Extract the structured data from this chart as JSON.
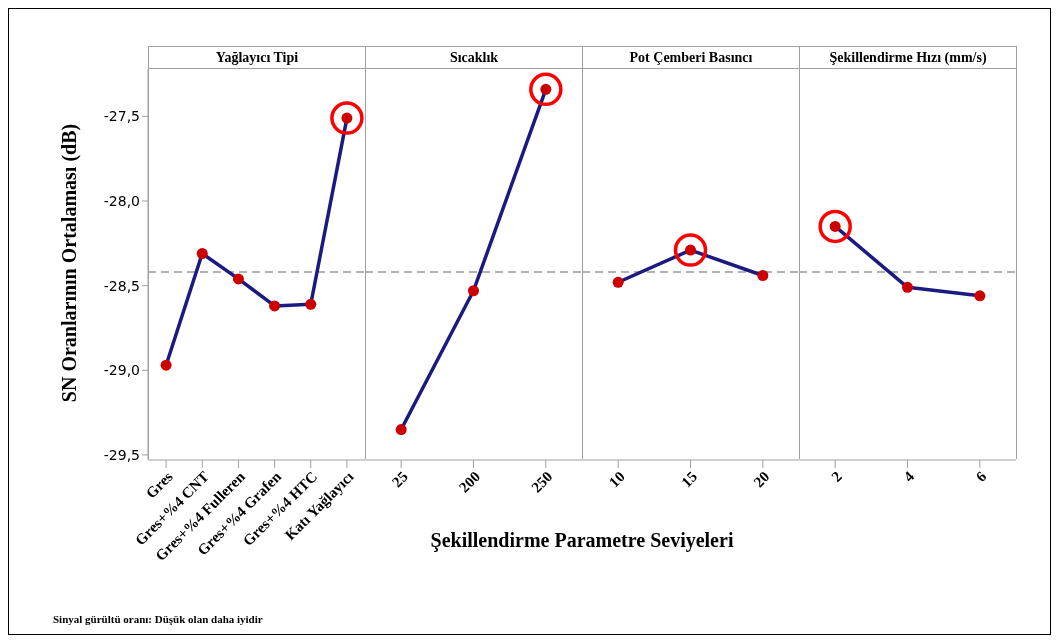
{
  "chart_data": [
    {
      "type": "line",
      "title": "Yağlayıcı Tipi",
      "ylabel": "SN Oranlarının Ortalaması (dB)",
      "xlabel": "Şekillendirme Parametre Seviyeleri",
      "annotations": [
        "Sinyal gürültü oranı: Düşük olan daha iyidir"
      ],
      "categories": [
        "Gres",
        "Gres+%4 CNT",
        "Gres+%4 Fulleren",
        "Gres+%4 Grafen",
        "Gres+%4 HTC",
        "Katı Yağlayıcı"
      ],
      "marker": "circle",
      "series": [
        {
          "color": "#1a1a80",
          "colors": [
            "#cc0000",
            "#cc0000",
            "#cc0000",
            "#cc0000",
            "#cc0000",
            "#cc0000"
          ],
          "values": [
            -28.97,
            -28.31,
            -28.46,
            -28.62,
            -28.61,
            -27.51
          ]
        },
        {
          "type": "scatter",
          "color": "#ff0000",
          "values": [
            null,
            null,
            null,
            null,
            null,
            -27.51
          ]
        }
      ],
      "ylim": [
        -29.53,
        -27.22
      ],
      "yticks": [
        {
          "value": -29.5,
          "label": "-29,5"
        },
        {
          "value": -29,
          "label": "-29,0"
        },
        {
          "value": -28.5,
          "label": "-28,5"
        },
        {
          "value": -28,
          "label": "-28,0"
        },
        {
          "value": -27.5,
          "label": "-27,5"
        }
      ],
      "ref_lines": [
        {
          "axis": "y",
          "value": -28.42,
          "color": "#999999",
          "line_style": "dashed"
        }
      ]
    },
    {
      "type": "line",
      "title": "Sıcaklık",
      "categories": [
        "25",
        "200",
        "250"
      ],
      "marker": "circle",
      "tick_labels": "x",
      "series": [
        {
          "color": "#1a1a80",
          "colors": [
            "#cc0000",
            "#cc0000",
            "#cc0000"
          ],
          "values": [
            -29.35,
            -28.53,
            -27.34
          ]
        },
        {
          "type": "scatter",
          "color": "#ff0000",
          "values": [
            null,
            null,
            -27.34
          ]
        }
      ],
      "ylim": [
        -29.53,
        -27.22
      ],
      "ref_lines": [
        {
          "axis": "y",
          "value": -28.42,
          "color": "#999999",
          "line_style": "dashed"
        }
      ]
    },
    {
      "type": "line",
      "title": "Pot Çemberi Basıncı",
      "categories": [
        "10",
        "15",
        "20"
      ],
      "marker": "circle",
      "tick_labels": "x",
      "series": [
        {
          "color": "#1a1a80",
          "colors": [
            "#cc0000",
            "#cc0000",
            "#cc0000"
          ],
          "values": [
            -28.48,
            -28.29,
            -28.44
          ]
        },
        {
          "type": "scatter",
          "color": "#ff0000",
          "values": [
            null,
            -28.29,
            null
          ]
        }
      ],
      "ylim": [
        -29.53,
        -27.22
      ],
      "ref_lines": [
        {
          "axis": "y",
          "value": -28.42,
          "color": "#999999",
          "line_style": "dashed"
        }
      ]
    },
    {
      "type": "line",
      "title": "Şekillendirme Hızı (mm/s)",
      "categories": [
        "2",
        "4",
        "6"
      ],
      "marker": "circle",
      "tick_labels": "x",
      "series": [
        {
          "color": "#1a1a80",
          "colors": [
            "#cc0000",
            "#cc0000",
            "#cc0000"
          ],
          "values": [
            -28.15,
            -28.51,
            -28.56
          ]
        },
        {
          "type": "scatter",
          "color": "#ff0000",
          "values": [
            -28.15,
            null,
            null
          ]
        }
      ],
      "ylim": [
        -29.53,
        -27.22
      ],
      "ref_lines": [
        {
          "axis": "y",
          "value": -28.42,
          "color": "#999999",
          "line_style": "dashed"
        }
      ]
    }
  ]
}
